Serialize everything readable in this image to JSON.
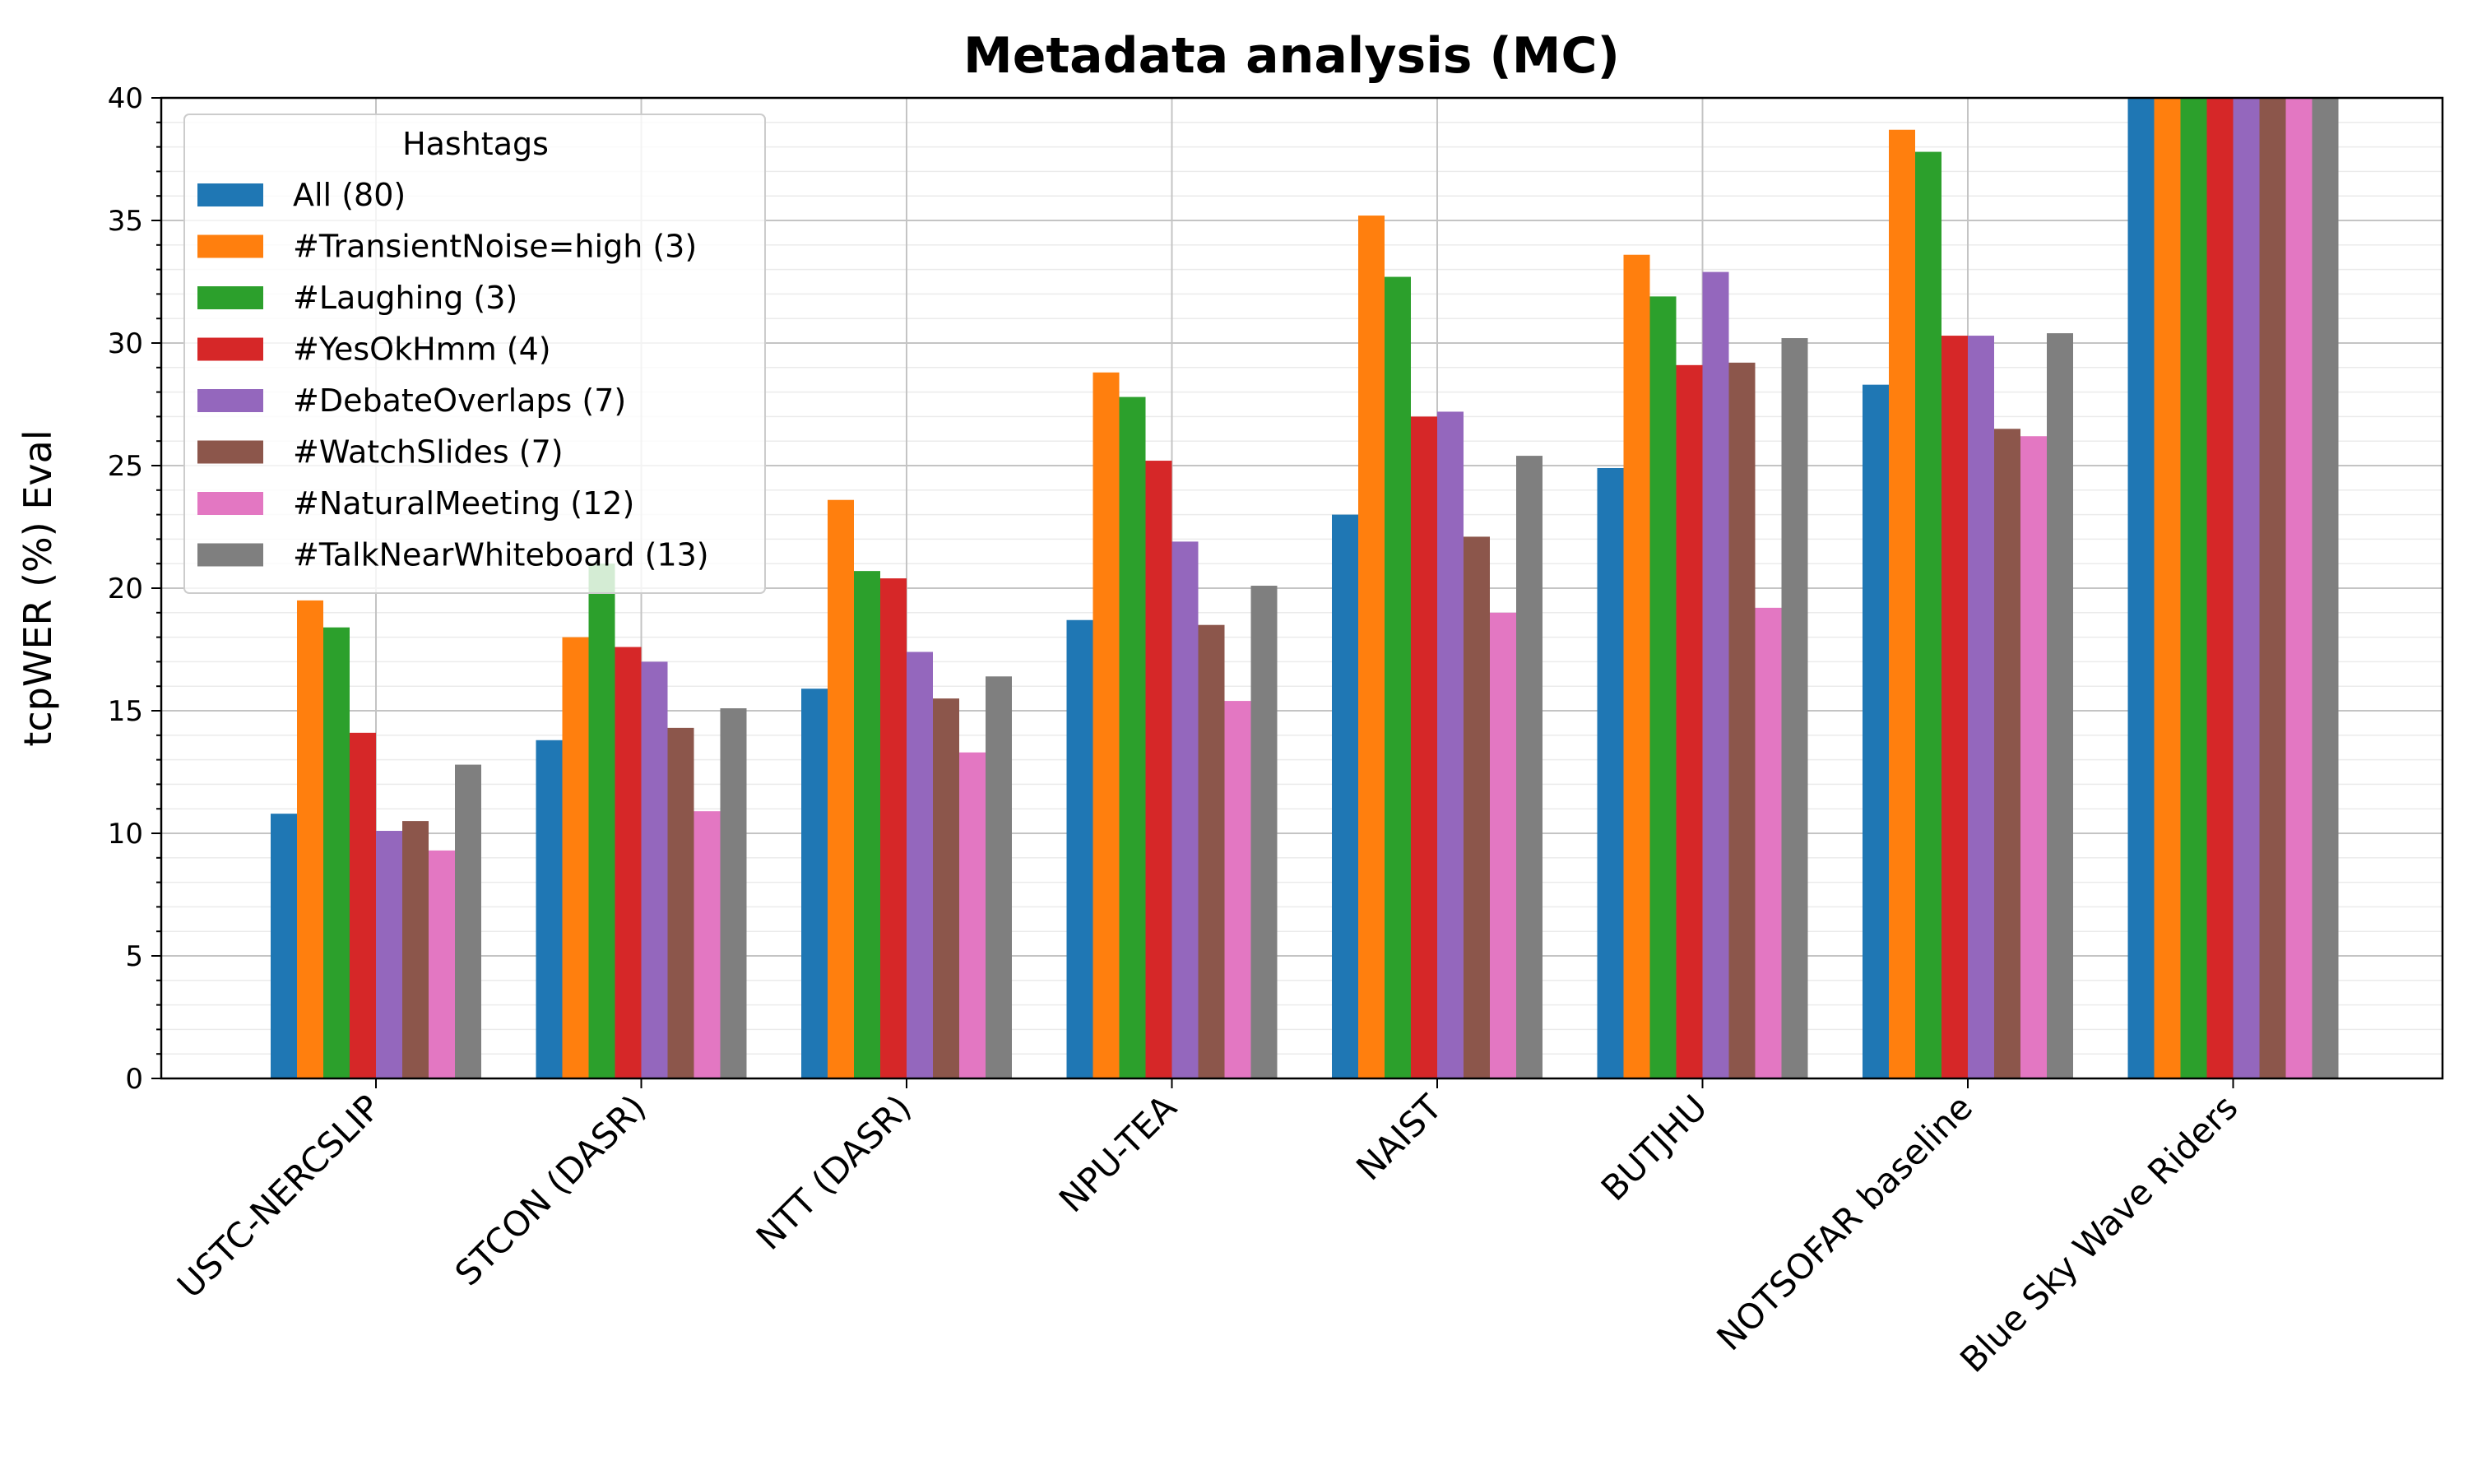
{
  "chart_data": {
    "type": "bar",
    "title": "Metadata analysis (MC)",
    "xlabel": "",
    "ylabel": "tcpWER (%) Eval",
    "ylim": [
      0,
      40
    ],
    "yticks": [
      "0",
      "5",
      "10",
      "15",
      "20",
      "25",
      "30",
      "35",
      "40"
    ],
    "grid": true,
    "legend": {
      "title": "Hashtags",
      "placement": "top-left"
    },
    "categories": [
      "USTC-NERCSLIP",
      "STCON (DASR)",
      "NTT (DASR)",
      "NPU-TEA",
      "NAIST",
      "BUTJHU",
      "NOTSOFAR baseline",
      "Blue Sky Wave Riders"
    ],
    "series": [
      {
        "name": "All (80)",
        "color": "#1f77b4",
        "values": [
          10.8,
          13.8,
          15.9,
          18.7,
          23.0,
          24.9,
          28.3,
          40
        ]
      },
      {
        "name": "#TransientNoise=high (3)",
        "color": "#ff7f0e",
        "values": [
          19.5,
          18.0,
          23.6,
          28.8,
          35.2,
          33.6,
          38.7,
          40
        ]
      },
      {
        "name": "#Laughing (3)",
        "color": "#2ca02c",
        "values": [
          18.4,
          21.0,
          20.7,
          27.8,
          32.7,
          31.9,
          37.8,
          40
        ]
      },
      {
        "name": "#YesOkHmm (4)",
        "color": "#d62728",
        "values": [
          14.1,
          17.6,
          20.4,
          25.2,
          27.0,
          29.1,
          30.3,
          40
        ]
      },
      {
        "name": "#DebateOverlaps (7)",
        "color": "#9467bd",
        "values": [
          10.1,
          17.0,
          17.4,
          21.9,
          27.2,
          32.9,
          30.3,
          40
        ]
      },
      {
        "name": "#WatchSlides (7)",
        "color": "#8c564b",
        "values": [
          10.5,
          14.3,
          15.5,
          18.5,
          22.1,
          29.2,
          26.5,
          40
        ]
      },
      {
        "name": "#NaturalMeeting (12)",
        "color": "#e377c2",
        "values": [
          9.3,
          10.9,
          13.3,
          15.4,
          19.0,
          19.2,
          26.2,
          40
        ]
      },
      {
        "name": "#TalkNearWhiteboard (13)",
        "color": "#7f7f7f",
        "values": [
          12.8,
          15.1,
          16.4,
          20.1,
          25.4,
          30.2,
          30.4,
          40
        ]
      }
    ]
  }
}
